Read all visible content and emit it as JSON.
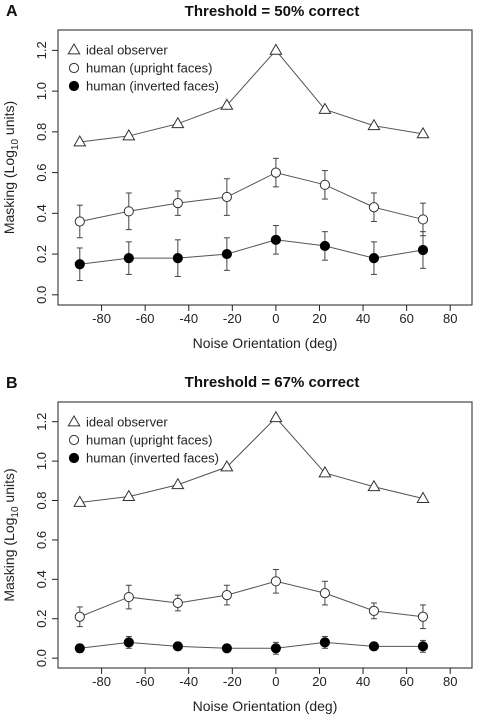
{
  "chart_data": [
    {
      "type": "line",
      "panel_label": "A",
      "title": "Threshold = 50% correct",
      "xlabel": "Noise Orientation (deg)",
      "ylabel_prefix": "Masking (Log",
      "ylabel_sub": "10",
      "ylabel_suffix": " units)",
      "xlim": [
        -100,
        90
      ],
      "ylim": [
        -0.05,
        1.3
      ],
      "xticks": [
        -80,
        -60,
        -40,
        -20,
        0,
        20,
        40,
        60,
        80
      ],
      "yticks": [
        0.0,
        0.2,
        0.4,
        0.6,
        0.8,
        1.0,
        1.2
      ],
      "x": [
        -90,
        -67.5,
        -45,
        -22.5,
        0,
        22.5,
        45,
        67.5
      ],
      "legend": [
        "ideal observer",
        "human (upright faces)",
        "human (inverted faces)"
      ],
      "legend_position": "top-left",
      "series": [
        {
          "name": "ideal observer",
          "marker": "triangle",
          "values": [
            0.75,
            0.78,
            0.84,
            0.93,
            1.2,
            0.91,
            0.83,
            0.79
          ]
        },
        {
          "name": "human (upright faces)",
          "marker": "open-circle",
          "values": [
            0.36,
            0.41,
            0.45,
            0.48,
            0.6,
            0.54,
            0.43,
            0.37
          ],
          "errors": [
            0.08,
            0.09,
            0.06,
            0.09,
            0.07,
            0.07,
            0.07,
            0.08
          ]
        },
        {
          "name": "human (inverted faces)",
          "marker": "filled-circle",
          "values": [
            0.15,
            0.18,
            0.18,
            0.2,
            0.27,
            0.24,
            0.18,
            0.22
          ],
          "errors": [
            0.08,
            0.08,
            0.09,
            0.08,
            0.07,
            0.07,
            0.08,
            0.09
          ]
        }
      ]
    },
    {
      "type": "line",
      "panel_label": "B",
      "title": "Threshold = 67% correct",
      "xlabel": "Noise Orientation (deg)",
      "ylabel_prefix": "Masking (Log",
      "ylabel_sub": "10",
      "ylabel_suffix": " units)",
      "xlim": [
        -100,
        90
      ],
      "ylim": [
        -0.05,
        1.3
      ],
      "xticks": [
        -80,
        -60,
        -40,
        -20,
        0,
        20,
        40,
        60,
        80
      ],
      "yticks": [
        0.0,
        0.2,
        0.4,
        0.6,
        0.8,
        1.0,
        1.2
      ],
      "x": [
        -90,
        -67.5,
        -45,
        -22.5,
        0,
        22.5,
        45,
        67.5
      ],
      "legend": [
        "ideal observer",
        "human (upright faces)",
        "human (inverted faces)"
      ],
      "legend_position": "top-left",
      "series": [
        {
          "name": "ideal observer",
          "marker": "triangle",
          "values": [
            0.79,
            0.82,
            0.88,
            0.97,
            1.22,
            0.94,
            0.87,
            0.81
          ]
        },
        {
          "name": "human (upright faces)",
          "marker": "open-circle",
          "values": [
            0.21,
            0.31,
            0.28,
            0.32,
            0.39,
            0.33,
            0.24,
            0.21
          ],
          "errors": [
            0.05,
            0.06,
            0.04,
            0.05,
            0.06,
            0.06,
            0.04,
            0.06
          ]
        },
        {
          "name": "human (inverted faces)",
          "marker": "filled-circle",
          "values": [
            0.05,
            0.08,
            0.06,
            0.05,
            0.05,
            0.08,
            0.06,
            0.06
          ],
          "errors": [
            0.02,
            0.03,
            0.02,
            0.01,
            0.03,
            0.03,
            0.02,
            0.03
          ]
        }
      ]
    }
  ]
}
